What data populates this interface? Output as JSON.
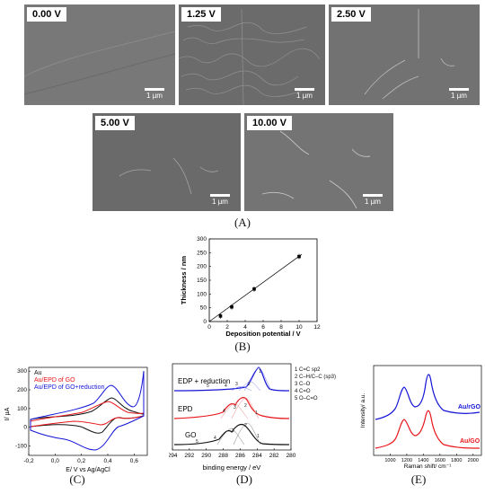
{
  "panelA": {
    "caption": "(A)",
    "images": [
      {
        "voltage": "0.00  V",
        "scale": "1 µm"
      },
      {
        "voltage": "1.25  V",
        "scale": "1 µm"
      },
      {
        "voltage": "2.50  V",
        "scale": "1 µm"
      },
      {
        "voltage": "5.00  V",
        "scale": "1 µm"
      },
      {
        "voltage": "10.00  V",
        "scale": "1 µm"
      }
    ]
  },
  "panelB": {
    "caption": "(B)"
  },
  "panelC": {
    "caption": "(C)"
  },
  "panelD": {
    "caption": "(D)",
    "peak_legend": [
      "1 C=C sp2",
      "2 C–H/C–C (sp3)",
      "3 C–O",
      "4 C=O",
      "5 O–C=O"
    ],
    "spectrum_labels": [
      "EDP + reduction",
      "EPD",
      "GO"
    ]
  },
  "panelE": {
    "caption": "(E)"
  },
  "colors": {
    "black": "#111111",
    "red": "#e8161b",
    "blue": "#1515d6"
  },
  "chart_data": [
    {
      "type": "scatter",
      "title": "",
      "xlabel": "Deposition potential / V",
      "ylabel": "Thickness / nm",
      "xlim": [
        0,
        12
      ],
      "ylim": [
        0,
        300
      ],
      "xticks": [
        0,
        2,
        4,
        6,
        8,
        10,
        12
      ],
      "yticks": [
        0,
        50,
        100,
        150,
        200,
        250,
        300
      ],
      "x": [
        1.25,
        2.5,
        5,
        10
      ],
      "y": [
        20,
        53,
        118,
        236
      ],
      "fit_line": {
        "x": [
          0,
          10.3
        ],
        "y": [
          0,
          244
        ]
      }
    },
    {
      "type": "line",
      "xlabel": "E/ V vs Ag/AgCl",
      "ylabel": "I/ µA",
      "xlim": [
        -0.2,
        0.7
      ],
      "ylim": [
        -150,
        320
      ],
      "xticks": [
        "-0,2",
        "0,0",
        "0,2",
        "0,4",
        "0,6"
      ],
      "yticks": [
        300,
        200,
        100,
        0,
        -100
      ],
      "legend": [
        "Au",
        "Au/EPD of GO",
        "Au/EPD of GO+reduction"
      ]
    },
    {
      "type": "line",
      "xlabel": "binding energy / eV",
      "xlim": [
        294,
        280
      ],
      "xticks": [
        294,
        292,
        290,
        288,
        286,
        284,
        282,
        280
      ],
      "series": [
        "EDP + reduction",
        "EPD",
        "GO"
      ]
    },
    {
      "type": "line",
      "xlabel": "Raman shift/ cm⁻¹",
      "ylabel": "Intensity/ a.u.",
      "xlim": [
        800,
        2100
      ],
      "xticks": [
        1000,
        1200,
        1400,
        1600,
        1800,
        2000
      ],
      "series": [
        {
          "name": "Au/rGO",
          "peaks_cm": [
            1350,
            1590
          ]
        },
        {
          "name": "Au/GO",
          "peaks_cm": [
            1350,
            1590
          ]
        }
      ]
    }
  ]
}
